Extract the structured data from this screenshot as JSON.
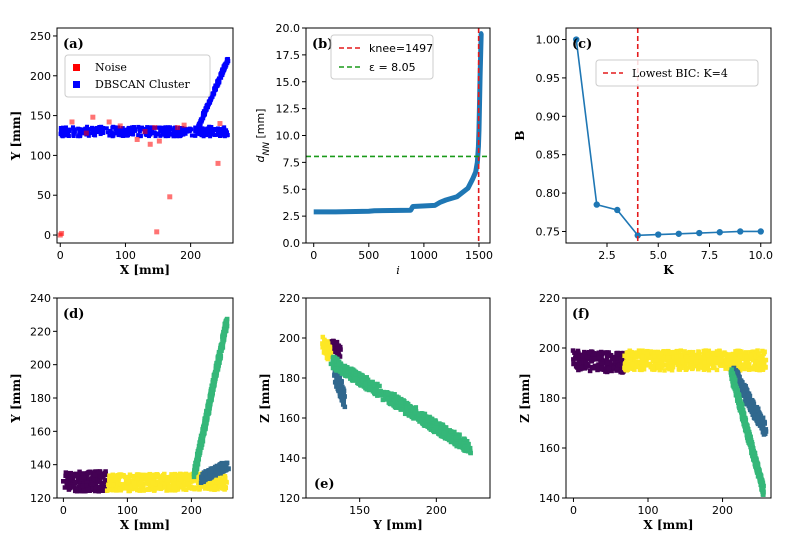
{
  "chart_data": [
    {
      "panel": "a",
      "panel_label": "(a)",
      "type": "scatter",
      "xlabel": "X [mm]",
      "ylabel": "Y [mm]",
      "xlim": [
        -5,
        265
      ],
      "ylim": [
        -10,
        260
      ],
      "xticks": [
        0,
        100,
        200
      ],
      "yticks": [
        0,
        50,
        100,
        150,
        200,
        250
      ],
      "colors": {
        "noise": "#ff0000",
        "cluster": "#0000ff"
      },
      "legend": [
        "Noise",
        "DBSCAN Cluster"
      ],
      "legend_position": "upper-left",
      "noise_points": [
        [
          0,
          0
        ],
        [
          2,
          2
        ],
        [
          18,
          142
        ],
        [
          40,
          128
        ],
        [
          50,
          148
        ],
        [
          75,
          142
        ],
        [
          92,
          137
        ],
        [
          118,
          120
        ],
        [
          130,
          130
        ],
        [
          138,
          114
        ],
        [
          145,
          135
        ],
        [
          148,
          4
        ],
        [
          152,
          118
        ],
        [
          168,
          48
        ],
        [
          180,
          135
        ],
        [
          190,
          138
        ],
        [
          242,
          90
        ],
        [
          245,
          140
        ]
      ],
      "cluster_segments": [
        {
          "x_from": 0,
          "x_to": 258,
          "y_from": 130,
          "y_to": 130,
          "spread": 6
        },
        {
          "x_from": 210,
          "x_to": 258,
          "y_from": 132,
          "y_to": 222,
          "spread": 3
        }
      ]
    },
    {
      "panel": "b",
      "panel_label": "(b)",
      "type": "line",
      "xlabel": "i",
      "ylabel": "d_NN [mm]",
      "xlim": [
        -70,
        1600
      ],
      "ylim": [
        0,
        20
      ],
      "xticks": [
        0,
        500,
        1000,
        1500
      ],
      "yticks": [
        0.0,
        2.5,
        5.0,
        7.5,
        10.0,
        12.5,
        15.0,
        17.5,
        20.0
      ],
      "series_color": "#1f77b4",
      "curve": [
        [
          0,
          2.9
        ],
        [
          200,
          2.9
        ],
        [
          500,
          2.95
        ],
        [
          550,
          3.0
        ],
        [
          880,
          3.05
        ],
        [
          900,
          3.4
        ],
        [
          1100,
          3.5
        ],
        [
          1150,
          3.8
        ],
        [
          1200,
          4.0
        ],
        [
          1300,
          4.3
        ],
        [
          1400,
          5.1
        ],
        [
          1440,
          5.9
        ],
        [
          1470,
          6.6
        ],
        [
          1485,
          7.5
        ],
        [
          1495,
          9.0
        ],
        [
          1500,
          10.5
        ],
        [
          1505,
          13.0
        ],
        [
          1510,
          15.5
        ],
        [
          1515,
          17.5
        ],
        [
          1520,
          19.5
        ]
      ],
      "vline": {
        "x": 1497,
        "label": "knee=1497",
        "color": "#e41a1c"
      },
      "hline": {
        "y": 8.05,
        "label": "ε = 8.05",
        "color": "#1a9a1a"
      },
      "legend_position": "upper-left"
    },
    {
      "panel": "c",
      "panel_label": "(c)",
      "type": "line",
      "xlabel": "K",
      "ylabel": "B",
      "xlim": [
        0.5,
        10.5
      ],
      "ylim": [
        0.735,
        1.015
      ],
      "xticks": [
        2.5,
        5.0,
        7.5,
        10.0
      ],
      "yticks": [
        0.75,
        0.8,
        0.85,
        0.9,
        0.95,
        1.0
      ],
      "series_color": "#1f77b4",
      "x": [
        1,
        2,
        3,
        4,
        5,
        6,
        7,
        8,
        9,
        10
      ],
      "y": [
        1.0,
        0.785,
        0.778,
        0.745,
        0.746,
        0.747,
        0.748,
        0.749,
        0.75,
        0.75
      ],
      "vline": {
        "x": 4,
        "label": "Lowest BIC: K=4",
        "color": "#e41a1c"
      },
      "legend_position": "upper-right"
    },
    {
      "panel": "d",
      "panel_label": "(d)",
      "type": "scatter",
      "xlabel": "X [mm]",
      "ylabel": "Y [mm]",
      "xlim": [
        -10,
        265
      ],
      "ylim": [
        120,
        240
      ],
      "xticks": [
        0,
        100,
        200
      ],
      "yticks": [
        120,
        140,
        160,
        180,
        200,
        220,
        240
      ],
      "cluster_colors": [
        "#440154",
        "#31688e",
        "#35b779",
        "#fde725"
      ],
      "clusters": [
        {
          "color": 0,
          "x_from": 0,
          "x_to": 68,
          "y_from": 130,
          "y_to": 130,
          "spread": 6
        },
        {
          "color": 3,
          "x_from": 68,
          "x_to": 255,
          "y_from": 129,
          "y_to": 130,
          "spread": 5
        },
        {
          "color": 2,
          "x_from": 205,
          "x_to": 255,
          "y_from": 135,
          "y_to": 225,
          "spread": 3
        },
        {
          "color": 1,
          "x_from": 215,
          "x_to": 258,
          "y_from": 132,
          "y_to": 140,
          "spread": 3
        }
      ]
    },
    {
      "panel": "e",
      "panel_label": "(e)",
      "type": "scatter",
      "xlabel": "Y [mm]",
      "ylabel": "Z [mm]",
      "xlim": [
        115,
        235
      ],
      "ylim": [
        120,
        220
      ],
      "xticks": [
        150,
        200
      ],
      "yticks": [
        120,
        140,
        160,
        180,
        200,
        220
      ],
      "cluster_colors": [
        "#440154",
        "#31688e",
        "#35b779",
        "#fde725"
      ],
      "clusters": [
        {
          "color": 0,
          "x_from": 132,
          "x_to": 137,
          "y_from": 197,
          "y_to": 193,
          "spread": 3
        },
        {
          "color": 3,
          "x_from": 126,
          "x_to": 131,
          "y_from": 197,
          "y_to": 192,
          "spread": 4
        },
        {
          "color": 1,
          "x_from": 134,
          "x_to": 140,
          "y_from": 184,
          "y_to": 168,
          "spread": 4
        },
        {
          "color": 2,
          "x_from": 132,
          "x_to": 222,
          "y_from": 188,
          "y_to": 145,
          "spread": 3
        }
      ]
    },
    {
      "panel": "f",
      "panel_label": "(f)",
      "type": "scatter",
      "xlabel": "X [mm]",
      "ylabel": "Z [mm]",
      "xlim": [
        -10,
        265
      ],
      "ylim": [
        140,
        220
      ],
      "xticks": [
        0,
        100,
        200
      ],
      "yticks": [
        140,
        160,
        180,
        200,
        220
      ],
      "cluster_colors": [
        "#440154",
        "#31688e",
        "#35b779",
        "#fde725"
      ],
      "clusters": [
        {
          "color": 0,
          "x_from": 0,
          "x_to": 68,
          "y_from": 195,
          "y_to": 194,
          "spread": 4
        },
        {
          "color": 3,
          "x_from": 68,
          "x_to": 258,
          "y_from": 195,
          "y_to": 195,
          "spread": 4
        },
        {
          "color": 1,
          "x_from": 215,
          "x_to": 258,
          "y_from": 190,
          "y_to": 167,
          "spread": 3
        },
        {
          "color": 2,
          "x_from": 212,
          "x_to": 255,
          "y_from": 190,
          "y_to": 143,
          "spread": 2
        }
      ]
    }
  ]
}
